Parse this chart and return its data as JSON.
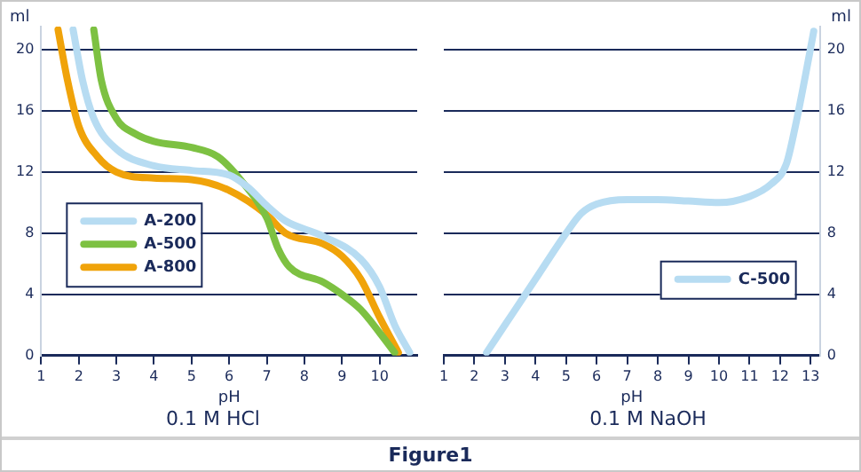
{
  "chart_data": [
    {
      "type": "line",
      "title": "0.1 M HCl",
      "xlabel": "pH",
      "ylabel": "ml",
      "xlim": [
        1,
        11
      ],
      "xticks": [
        1,
        2,
        3,
        4,
        5,
        6,
        7,
        8,
        9,
        10
      ],
      "ylim": [
        0,
        21.5
      ],
      "yticks": [
        0,
        4,
        8,
        12,
        16,
        20
      ],
      "grid": "y",
      "legend": "left",
      "marker": "none",
      "line_style": "solid",
      "annotations": [
        "Figure1"
      ],
      "series": [
        {
          "name": "A-200",
          "color": "#b7dcf2",
          "x": [
            1.85,
            2.1,
            2.4,
            3,
            4,
            5,
            6,
            6.5,
            7,
            7.5,
            8.5,
            9.5,
            10,
            10.4,
            10.8
          ],
          "values": [
            21.3,
            18,
            15.5,
            13.5,
            12.4,
            12.1,
            11.8,
            11,
            9.8,
            8.8,
            7.8,
            6.3,
            4.5,
            2,
            0.2
          ]
        },
        {
          "name": "A-500",
          "color": "#7dc142",
          "x": [
            2.4,
            2.6,
            3,
            3.5,
            4,
            5,
            5.7,
            6.3,
            7,
            7.3,
            7.6,
            8.5,
            9,
            9.5,
            10,
            10.4
          ],
          "values": [
            21.3,
            18,
            15.5,
            14.5,
            14,
            13.6,
            13,
            11.5,
            9,
            7,
            5.8,
            4.8,
            4,
            3,
            1.5,
            0.2
          ]
        },
        {
          "name": "A-800",
          "color": "#f0a30a",
          "x": [
            1.45,
            1.7,
            2,
            2.5,
            3,
            4,
            5,
            6,
            7,
            7.5,
            8.5,
            9,
            9.5,
            10,
            10.5
          ],
          "values": [
            21.3,
            18,
            15,
            13,
            12,
            11.6,
            11.5,
            10.8,
            9.2,
            8,
            7.3,
            6.5,
            5,
            2.5,
            0.2
          ]
        }
      ]
    },
    {
      "type": "line",
      "title": "0.1 M NaOH",
      "xlabel": "pH",
      "ylabel": "ml",
      "xlim": [
        1,
        13.3
      ],
      "xticks": [
        1,
        2,
        3,
        4,
        5,
        6,
        7,
        8,
        9,
        10,
        11,
        12,
        13
      ],
      "ylim": [
        0,
        21.5
      ],
      "yticks": [
        0,
        4,
        8,
        12,
        16,
        20
      ],
      "grid": "y",
      "legend": "bottom right",
      "marker": "none",
      "line_style": "solid",
      "series": [
        {
          "name": "C-500",
          "color": "#b7dcf2",
          "x": [
            2.4,
            3,
            4,
            5,
            5.5,
            6,
            7,
            8,
            9,
            10,
            11,
            11.7,
            12.2,
            12.5,
            12.8,
            13.1
          ],
          "values": [
            0.2,
            2,
            5,
            8,
            9.3,
            9.9,
            10.2,
            10.2,
            10.1,
            10,
            10.4,
            11.2,
            12.5,
            15,
            18,
            21.2
          ]
        }
      ]
    }
  ]
}
